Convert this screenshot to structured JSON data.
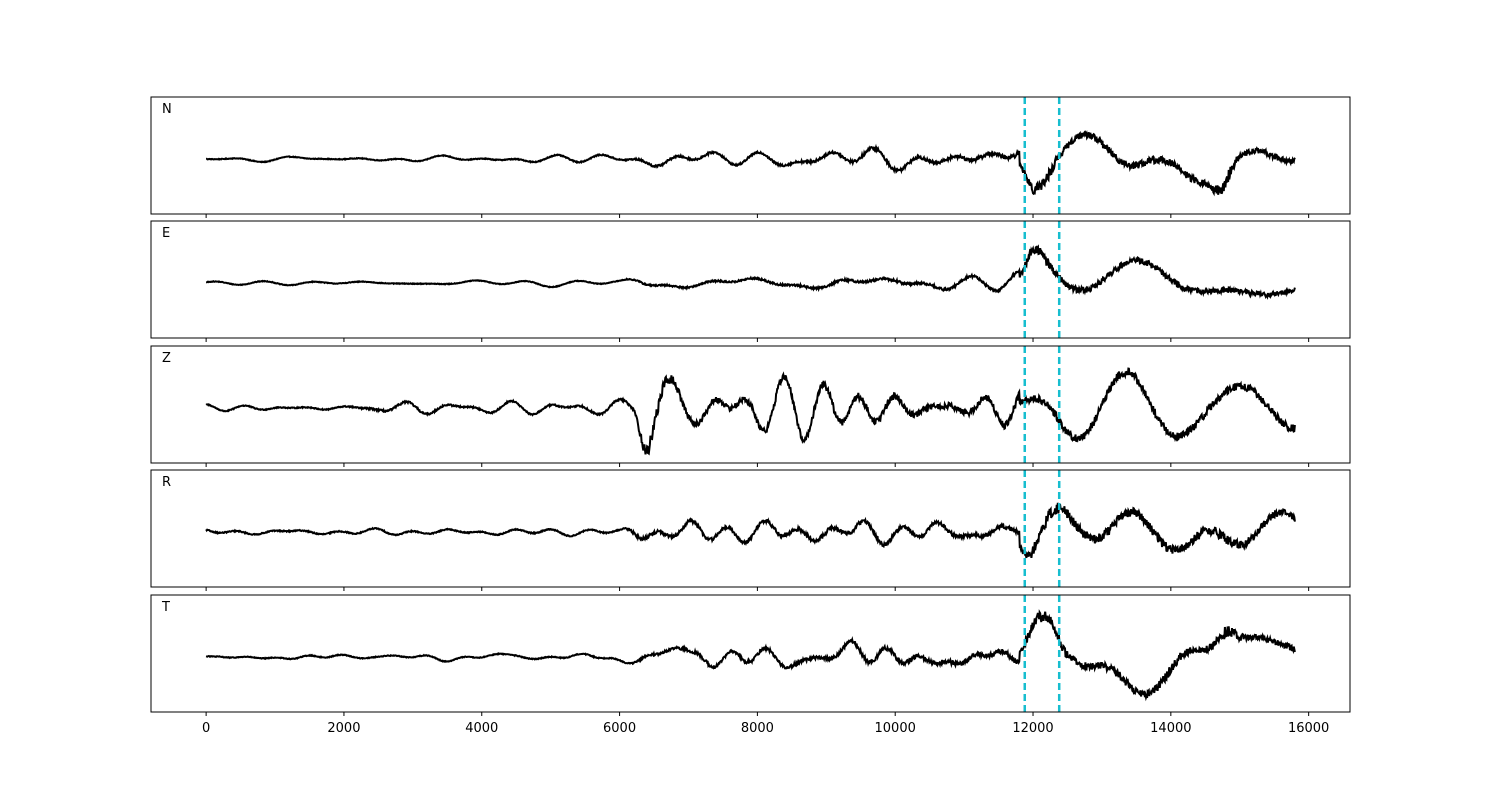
{
  "chart_data": {
    "type": "line",
    "xlim": [
      -800,
      16600
    ],
    "x_ticks": [
      0,
      2000,
      4000,
      6000,
      8000,
      10000,
      12000,
      14000,
      16000
    ],
    "x_tick_labels": [
      "0",
      "2000",
      "4000",
      "6000",
      "8000",
      "10000",
      "12000",
      "14000",
      "16000"
    ],
    "x_range": [
      0,
      15800
    ],
    "xlabel": "",
    "ylabel": "",
    "grid": false,
    "line_color": "#000000",
    "marker_color": "#17becf",
    "marker_style": "dashed",
    "markers_x": [
      11880,
      12380
    ],
    "panels": [
      {
        "label": "N",
        "envelope": [
          [
            0,
            0.05
          ],
          [
            2000,
            0.05
          ],
          [
            4000,
            0.06
          ],
          [
            6000,
            0.09
          ],
          [
            6500,
            0.15
          ],
          [
            8000,
            0.13
          ],
          [
            9500,
            0.22
          ],
          [
            11000,
            0.25
          ],
          [
            11800,
            0.3
          ],
          [
            12000,
            0.8
          ],
          [
            12300,
            0.75
          ],
          [
            12400,
            0.45
          ],
          [
            13500,
            0.62
          ],
          [
            14000,
            0.55
          ],
          [
            14500,
            0.5
          ],
          [
            14800,
            1.0
          ],
          [
            15000,
            0.45
          ],
          [
            15800,
            0.45
          ]
        ]
      },
      {
        "label": "E",
        "envelope": [
          [
            0,
            0.05
          ],
          [
            2000,
            0.05
          ],
          [
            4000,
            0.05
          ],
          [
            6000,
            0.05
          ],
          [
            6300,
            0.12
          ],
          [
            8000,
            0.13
          ],
          [
            9500,
            0.18
          ],
          [
            11000,
            0.18
          ],
          [
            11800,
            0.2
          ],
          [
            12000,
            0.85
          ],
          [
            12400,
            0.5
          ],
          [
            13000,
            0.45
          ],
          [
            14000,
            0.45
          ],
          [
            15000,
            0.35
          ],
          [
            15800,
            0.3
          ]
        ]
      },
      {
        "label": "Z",
        "envelope": [
          [
            0,
            0.07
          ],
          [
            2000,
            0.08
          ],
          [
            2500,
            0.14
          ],
          [
            3000,
            0.15
          ],
          [
            4000,
            0.1
          ],
          [
            5500,
            0.12
          ],
          [
            6200,
            0.15
          ],
          [
            6400,
            1.0
          ],
          [
            6600,
            0.9
          ],
          [
            7000,
            0.42
          ],
          [
            8500,
            0.48
          ],
          [
            9000,
            0.55
          ],
          [
            10000,
            0.52
          ],
          [
            11000,
            0.42
          ],
          [
            11500,
            0.55
          ],
          [
            12000,
            0.52
          ],
          [
            12400,
            0.6
          ],
          [
            13500,
            0.6
          ],
          [
            14500,
            0.55
          ],
          [
            15800,
            0.55
          ]
        ]
      },
      {
        "label": "R",
        "envelope": [
          [
            0,
            0.08
          ],
          [
            2000,
            0.08
          ],
          [
            4000,
            0.08
          ],
          [
            6000,
            0.08
          ],
          [
            6300,
            0.25
          ],
          [
            8000,
            0.25
          ],
          [
            9500,
            0.32
          ],
          [
            11000,
            0.25
          ],
          [
            11800,
            0.3
          ],
          [
            12000,
            0.9
          ],
          [
            12400,
            0.85
          ],
          [
            12600,
            0.7
          ],
          [
            14000,
            0.65
          ],
          [
            14800,
            0.7
          ],
          [
            15800,
            0.4
          ]
        ]
      },
      {
        "label": "T",
        "envelope": [
          [
            0,
            0.06
          ],
          [
            2000,
            0.06
          ],
          [
            4000,
            0.06
          ],
          [
            6000,
            0.08
          ],
          [
            6500,
            0.18
          ],
          [
            7300,
            0.25
          ],
          [
            8500,
            0.22
          ],
          [
            9500,
            0.32
          ],
          [
            10800,
            0.35
          ],
          [
            11800,
            0.35
          ],
          [
            12000,
            0.85
          ],
          [
            12300,
            1.0
          ],
          [
            12500,
            0.6
          ],
          [
            13500,
            0.6
          ],
          [
            14000,
            0.7
          ],
          [
            14500,
            0.5
          ],
          [
            14800,
            1.0
          ],
          [
            15000,
            0.5
          ],
          [
            15800,
            0.45
          ]
        ]
      }
    ]
  }
}
